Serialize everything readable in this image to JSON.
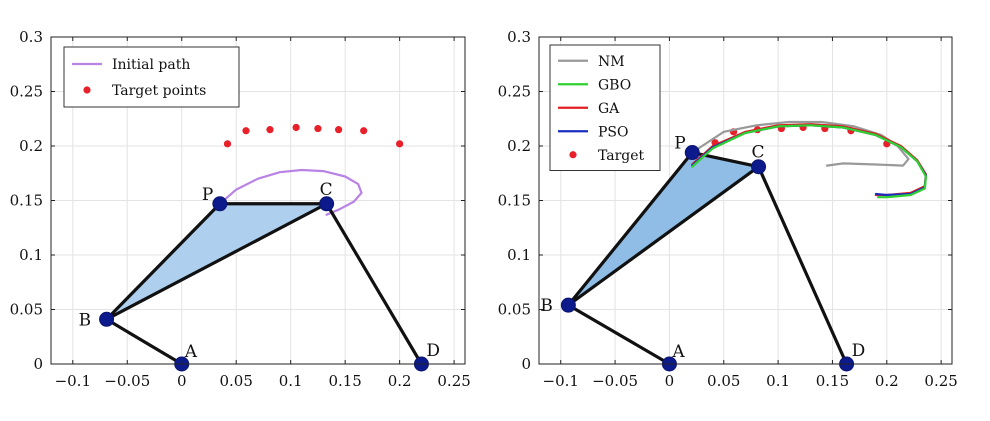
{
  "chart_data": [
    {
      "type": "line",
      "id": "left",
      "xlim": [
        -0.12,
        0.26
      ],
      "ylim": [
        0,
        0.3
      ],
      "xticks": [
        -0.1,
        -0.05,
        0,
        0.05,
        0.1,
        0.15,
        0.2,
        0.25
      ],
      "xtick_labels": [
        "−0.1",
        "−0.05",
        "0",
        "0.05",
        "0.1",
        "0.15",
        "0.2",
        "0.25"
      ],
      "yticks": [
        0,
        0.05,
        0.1,
        0.15,
        0.2,
        0.25,
        0.3
      ],
      "ytick_labels": [
        "0",
        "0.05",
        "0.1",
        "0.15",
        "0.2",
        "0.25",
        "0.3"
      ],
      "grid": true,
      "legend": {
        "position": "top-left",
        "entries": [
          {
            "label": "Initial path",
            "style": "line",
            "color": "#b983e6"
          },
          {
            "label": "Target points",
            "style": "marker",
            "color": "#e8202a"
          }
        ]
      },
      "joints": [
        {
          "label": "A",
          "x": 0.0,
          "y": 0.0
        },
        {
          "label": "B",
          "x": -0.069,
          "y": 0.041
        },
        {
          "label": "P",
          "x": 0.035,
          "y": 0.147
        },
        {
          "label": "C",
          "x": 0.133,
          "y": 0.147
        },
        {
          "label": "D",
          "x": 0.22,
          "y": 0.0
        }
      ],
      "links": [
        [
          "A",
          "B"
        ],
        [
          "C",
          "D"
        ]
      ],
      "coupler": [
        "B",
        "P",
        "C"
      ],
      "coupler_fill": "#aed0ee",
      "series": [
        {
          "name": "Initial path",
          "color": "#b983e6",
          "x": [
            0.035,
            0.05,
            0.07,
            0.09,
            0.11,
            0.13,
            0.15,
            0.162,
            0.165,
            0.158,
            0.145,
            0.133
          ],
          "y": [
            0.147,
            0.16,
            0.17,
            0.176,
            0.178,
            0.177,
            0.172,
            0.165,
            0.157,
            0.149,
            0.142,
            0.137
          ]
        }
      ],
      "targets": {
        "name": "Target points",
        "color": "#e8202a",
        "x": [
          0.042,
          0.059,
          0.081,
          0.105,
          0.125,
          0.144,
          0.167,
          0.2
        ],
        "y": [
          0.202,
          0.214,
          0.215,
          0.217,
          0.216,
          0.215,
          0.214,
          0.202
        ]
      }
    },
    {
      "type": "line",
      "id": "right",
      "xlim": [
        -0.12,
        0.26
      ],
      "ylim": [
        0,
        0.3
      ],
      "xticks": [
        -0.1,
        -0.05,
        0,
        0.05,
        0.1,
        0.15,
        0.2,
        0.25
      ],
      "xtick_labels": [
        "−0.1",
        "−0.05",
        "0",
        "0.05",
        "0.1",
        "0.15",
        "0.2",
        "0.25"
      ],
      "yticks": [
        0,
        0.05,
        0.1,
        0.15,
        0.2,
        0.25,
        0.3
      ],
      "ytick_labels": [
        "0",
        "0.05",
        "0.1",
        "0.15",
        "0.2",
        "0.25",
        "0.3"
      ],
      "grid": true,
      "legend": {
        "position": "top-left",
        "entries": [
          {
            "label": "NM",
            "style": "line",
            "color": "#999999"
          },
          {
            "label": "GBO",
            "style": "line",
            "color": "#2fd02f"
          },
          {
            "label": "GA",
            "style": "line",
            "color": "#e02020"
          },
          {
            "label": "PSO",
            "style": "line",
            "color": "#1a2fc0"
          },
          {
            "label": "Target",
            "style": "marker",
            "color": "#e8202a"
          }
        ]
      },
      "joints": [
        {
          "label": "A",
          "x": 0.0,
          "y": 0.0
        },
        {
          "label": "B",
          "x": -0.093,
          "y": 0.054
        },
        {
          "label": "P",
          "x": 0.021,
          "y": 0.194
        },
        {
          "label": "C",
          "x": 0.082,
          "y": 0.181
        },
        {
          "label": "D",
          "x": 0.163,
          "y": 0.0
        }
      ],
      "links": [
        [
          "A",
          "B"
        ],
        [
          "C",
          "D"
        ]
      ],
      "coupler": [
        "B",
        "P",
        "C"
      ],
      "coupler_fill": "#8fbde6",
      "series": [
        {
          "name": "NM",
          "color": "#999999",
          "x": [
            0.021,
            0.05,
            0.08,
            0.11,
            0.14,
            0.17,
            0.195,
            0.21,
            0.22,
            0.215,
            0.19,
            0.16,
            0.145
          ],
          "y": [
            0.194,
            0.213,
            0.219,
            0.222,
            0.222,
            0.218,
            0.21,
            0.2,
            0.188,
            0.182,
            0.183,
            0.184,
            0.182
          ]
        },
        {
          "name": "GA",
          "color": "#e02020",
          "x": [
            0.021,
            0.04,
            0.07,
            0.1,
            0.13,
            0.16,
            0.19,
            0.213,
            0.228,
            0.236,
            0.235,
            0.222,
            0.2,
            0.19
          ],
          "y": [
            0.183,
            0.2,
            0.213,
            0.219,
            0.22,
            0.218,
            0.211,
            0.2,
            0.187,
            0.174,
            0.163,
            0.157,
            0.155,
            0.155
          ]
        },
        {
          "name": "PSO",
          "color": "#1a2fc0",
          "x": [
            0.021,
            0.04,
            0.07,
            0.1,
            0.13,
            0.16,
            0.19,
            0.213,
            0.228,
            0.236,
            0.235,
            0.222,
            0.2,
            0.19
          ],
          "y": [
            0.182,
            0.199,
            0.212,
            0.218,
            0.219,
            0.217,
            0.21,
            0.199,
            0.186,
            0.173,
            0.162,
            0.156,
            0.155,
            0.156
          ]
        },
        {
          "name": "GBO",
          "color": "#2fd02f",
          "x": [
            0.021,
            0.04,
            0.07,
            0.1,
            0.13,
            0.16,
            0.19,
            0.213,
            0.228,
            0.236,
            0.235,
            0.222,
            0.2,
            0.192
          ],
          "y": [
            0.181,
            0.198,
            0.212,
            0.218,
            0.219,
            0.217,
            0.21,
            0.199,
            0.186,
            0.172,
            0.161,
            0.155,
            0.153,
            0.153
          ]
        }
      ],
      "targets": {
        "name": "Target",
        "color": "#e8202a",
        "x": [
          0.042,
          0.059,
          0.081,
          0.103,
          0.123,
          0.143,
          0.167,
          0.2
        ],
        "y": [
          0.203,
          0.213,
          0.215,
          0.216,
          0.217,
          0.216,
          0.214,
          0.202
        ]
      }
    }
  ]
}
